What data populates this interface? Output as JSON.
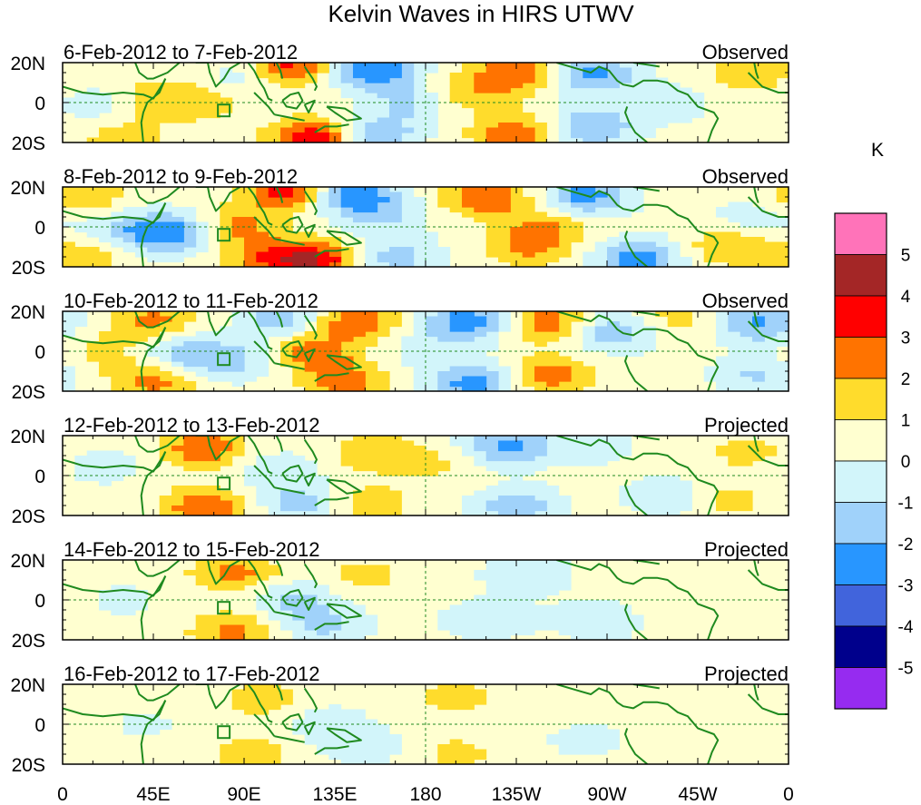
{
  "chart_data": {
    "type": "heatmap",
    "title": "Kelvin Waves in HIRS UTWV",
    "colorbar": {
      "unit": "K",
      "tick_labels": [
        "5",
        "4",
        "3",
        "2",
        "1",
        "0",
        "-1",
        "-2",
        "-3",
        "-4",
        "-5"
      ],
      "levels": [
        {
          "range": [
            5,
            6
          ],
          "color": "#ff73b9"
        },
        {
          "range": [
            4,
            5
          ],
          "color": "#a42626"
        },
        {
          "range": [
            3,
            4
          ],
          "color": "#ff0000"
        },
        {
          "range": [
            2,
            3
          ],
          "color": "#ff7300"
        },
        {
          "range": [
            1,
            2
          ],
          "color": "#ffdc2c"
        },
        {
          "range": [
            0,
            1
          ],
          "color": "#ffffd0"
        },
        {
          "range": [
            -1,
            0
          ],
          "color": "#d2f5fa"
        },
        {
          "range": [
            -2,
            -1
          ],
          "color": "#a0d2fa"
        },
        {
          "range": [
            -3,
            -2
          ],
          "color": "#2896ff"
        },
        {
          "range": [
            -4,
            -3
          ],
          "color": "#4164dc"
        },
        {
          "range": [
            -5,
            -4
          ],
          "color": "#00008c"
        },
        {
          "range": [
            -6,
            -5
          ],
          "color": "#962bf0"
        }
      ]
    },
    "x_ticks": [
      "0",
      "45E",
      "90E",
      "135E",
      "180",
      "135W",
      "90W",
      "45W",
      "0"
    ],
    "y_ticks": [
      "20N",
      "0",
      "20S"
    ],
    "xlim": [
      0,
      360
    ],
    "ylim": [
      -20,
      20
    ],
    "panels": [
      {
        "date_range": "6-Feb-2012 to 7-Feb-2012",
        "status": "Observed",
        "blobs": [
          [
            45,
            2,
            1.4
          ],
          [
            30,
            -18,
            1.2
          ],
          [
            110,
            18,
            3.5
          ],
          [
            125,
            -18,
            3.5
          ],
          [
            95,
            14,
            -1.6
          ],
          [
            155,
            16,
            -3.2
          ],
          [
            155,
            -16,
            -2.2
          ],
          [
            175,
            0,
            -1.5
          ],
          [
            225,
            15,
            2.5
          ],
          [
            225,
            -16,
            2.6
          ],
          [
            200,
            5,
            1.5
          ],
          [
            262,
            15,
            -2.8
          ],
          [
            262,
            -12,
            -2.4
          ],
          [
            300,
            0,
            -1.0
          ],
          [
            340,
            15,
            1.5
          ],
          [
            20,
            0,
            -1.0
          ],
          [
            70,
            0,
            1.0
          ]
        ]
      },
      {
        "date_range": "8-Feb-2012 to 9-Feb-2012",
        "status": "Observed",
        "blobs": [
          [
            55,
            -3,
            -3.0
          ],
          [
            85,
            0,
            2.0
          ],
          [
            110,
            18,
            3.0
          ],
          [
            100,
            -16,
            2.0
          ],
          [
            125,
            -17,
            3.5
          ],
          [
            145,
            16,
            -3.0
          ],
          [
            160,
            5,
            -1.2
          ],
          [
            165,
            -15,
            -1.8
          ],
          [
            210,
            15,
            2.5
          ],
          [
            240,
            0,
            1.5
          ],
          [
            230,
            -10,
            1.8
          ],
          [
            260,
            16,
            -2.8
          ],
          [
            285,
            -16,
            -2.8
          ],
          [
            10,
            15,
            1.5
          ],
          [
            10,
            -15,
            1.5
          ],
          [
            30,
            -2,
            -1.5
          ],
          [
            330,
            -10,
            1.5
          ],
          [
            345,
            5,
            -1.0
          ]
        ]
      },
      {
        "date_range": "10-Feb-2012 to 11-Feb-2012",
        "status": "Observed",
        "blobs": [
          [
            45,
            15,
            2.0
          ],
          [
            45,
            -15,
            2.0
          ],
          [
            60,
            0,
            -2.0
          ],
          [
            85,
            -5,
            -1.5
          ],
          [
            110,
            16,
            -2.0
          ],
          [
            125,
            0,
            2.2
          ],
          [
            145,
            16,
            2.5
          ],
          [
            140,
            -15,
            2.2
          ],
          [
            180,
            0,
            -0.8
          ],
          [
            200,
            15,
            -3.0
          ],
          [
            205,
            -16,
            -3.0
          ],
          [
            240,
            15,
            2.3
          ],
          [
            240,
            -12,
            2.3
          ],
          [
            275,
            10,
            -2.2
          ],
          [
            300,
            15,
            1.2
          ],
          [
            345,
            14,
            -2.5
          ],
          [
            345,
            -12,
            -1.5
          ],
          [
            20,
            0,
            1.0
          ]
        ]
      },
      {
        "date_range": "12-Feb-2012 to 13-Feb-2012",
        "status": "Projected",
        "blobs": [
          [
            70,
            14,
            2.5
          ],
          [
            70,
            -16,
            2.5
          ],
          [
            105,
            2,
            -1.2
          ],
          [
            120,
            -14,
            -1.8
          ],
          [
            155,
            12,
            1.5
          ],
          [
            150,
            -14,
            1.5
          ],
          [
            185,
            6,
            0.8
          ],
          [
            220,
            15,
            -2.5
          ],
          [
            225,
            -16,
            -2.0
          ],
          [
            260,
            16,
            -1.0
          ],
          [
            300,
            -10,
            -1.2
          ],
          [
            340,
            12,
            1.0
          ],
          [
            330,
            -12,
            1.0
          ],
          [
            20,
            5,
            -0.8
          ]
        ]
      },
      {
        "date_range": "14-Feb-2012 to 15-Feb-2012",
        "status": "Projected",
        "blobs": [
          [
            85,
            14,
            2.0
          ],
          [
            85,
            -16,
            2.0
          ],
          [
            115,
            0,
            -1.5
          ],
          [
            130,
            -13,
            -1.5
          ],
          [
            150,
            12,
            1.0
          ],
          [
            210,
            -10,
            -1.2
          ],
          [
            230,
            13,
            -1.2
          ],
          [
            265,
            -10,
            -1.2
          ],
          [
            300,
            5,
            0.6
          ],
          [
            30,
            0,
            -0.6
          ],
          [
            340,
            -10,
            0.6
          ]
        ]
      },
      {
        "date_range": "16-Feb-2012 to 17-Feb-2012",
        "status": "Projected",
        "blobs": [
          [
            100,
            13,
            1.2
          ],
          [
            95,
            -15,
            1.2
          ],
          [
            130,
            0,
            -1.0
          ],
          [
            150,
            -12,
            -0.9
          ],
          [
            195,
            14,
            1.1
          ],
          [
            195,
            -15,
            1.0
          ],
          [
            260,
            -8,
            -0.7
          ],
          [
            300,
            5,
            0.5
          ],
          [
            40,
            0,
            -0.5
          ],
          [
            340,
            -10,
            0.5
          ]
        ]
      }
    ]
  }
}
